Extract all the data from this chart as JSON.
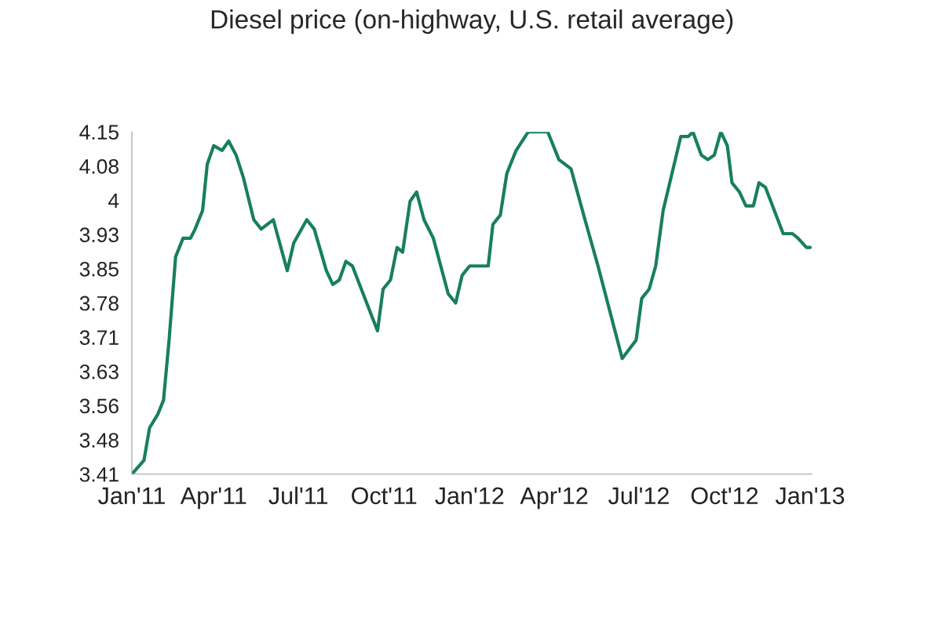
{
  "chart_data": {
    "type": "line",
    "title": "Diesel price (on-highway, U.S. retail average)",
    "x": [
      "2011-01-03",
      "2011-01-16",
      "2011-01-22",
      "2011-01-31",
      "2011-02-06",
      "2011-02-12",
      "2011-02-19",
      "2011-02-27",
      "2011-03-07",
      "2011-03-12",
      "2011-03-20",
      "2011-03-25",
      "2011-04-01",
      "2011-04-10",
      "2011-04-17",
      "2011-04-25",
      "2011-05-03",
      "2011-05-14",
      "2011-05-22",
      "2011-06-04",
      "2011-06-19",
      "2011-06-26",
      "2011-07-10",
      "2011-07-18",
      "2011-07-31",
      "2011-08-07",
      "2011-08-14",
      "2011-08-21",
      "2011-08-28",
      "2011-09-24",
      "2011-09-30",
      "2011-10-08",
      "2011-10-15",
      "2011-10-21",
      "2011-10-29",
      "2011-11-05",
      "2011-11-13",
      "2011-11-23",
      "2011-12-09",
      "2011-12-17",
      "2011-12-24",
      "2012-01-01",
      "2012-01-14",
      "2012-01-21",
      "2012-01-26",
      "2012-02-03",
      "2012-02-10",
      "2012-02-20",
      "2012-03-04",
      "2012-03-16",
      "2012-03-25",
      "2012-04-06",
      "2012-04-19",
      "2012-05-04",
      "2012-05-18",
      "2012-06-13",
      "2012-06-28",
      "2012-07-04",
      "2012-07-12",
      "2012-07-19",
      "2012-07-27",
      "2012-08-15",
      "2012-08-23",
      "2012-08-28",
      "2012-09-06",
      "2012-09-13",
      "2012-09-20",
      "2012-09-27",
      "2012-10-04",
      "2012-10-09",
      "2012-10-17",
      "2012-10-24",
      "2012-11-01",
      "2012-11-07",
      "2012-11-14",
      "2012-12-03",
      "2012-12-13",
      "2012-12-19",
      "2012-12-28",
      "2013-01-01"
    ],
    "series": [
      {
        "color": "#17805a",
        "values": [
          3.41,
          3.44,
          3.51,
          3.54,
          3.57,
          3.7,
          3.88,
          3.92,
          3.92,
          3.94,
          3.98,
          4.08,
          4.12,
          4.11,
          4.13,
          4.1,
          4.05,
          3.96,
          3.94,
          3.96,
          3.85,
          3.91,
          3.96,
          3.94,
          3.85,
          3.82,
          3.83,
          3.87,
          3.86,
          3.72,
          3.81,
          3.83,
          3.9,
          3.89,
          4.0,
          4.02,
          3.96,
          3.92,
          3.8,
          3.78,
          3.84,
          3.86,
          3.86,
          3.86,
          3.95,
          3.97,
          4.06,
          4.11,
          4.15,
          4.15,
          4.15,
          4.09,
          4.07,
          3.96,
          3.86,
          3.66,
          3.7,
          3.79,
          3.81,
          3.86,
          3.98,
          4.14,
          4.14,
          4.15,
          4.1,
          4.09,
          4.1,
          4.15,
          4.12,
          4.04,
          4.02,
          3.99,
          3.99,
          4.04,
          4.03,
          3.93,
          3.93,
          3.92,
          3.9,
          3.9
        ]
      }
    ],
    "xlim": [
      "2011-01-03",
      "2013-01-03"
    ],
    "xticks": [
      {
        "value": "2011-01-03",
        "label": "Jan'11"
      },
      {
        "value": "2011-04-01",
        "label": "Apr'11"
      },
      {
        "value": "2011-07-01",
        "label": "Jul'11"
      },
      {
        "value": "2011-10-01",
        "label": "Oct'11"
      },
      {
        "value": "2012-01-01",
        "label": "Jan'12"
      },
      {
        "value": "2012-04-01",
        "label": "Apr'12"
      },
      {
        "value": "2012-07-01",
        "label": "Jul'12"
      },
      {
        "value": "2012-10-01",
        "label": "Oct'12"
      },
      {
        "value": "2013-01-01",
        "label": "Jan'13"
      }
    ],
    "ylim": [
      3.41,
      4.15
    ],
    "yticks": [
      3.41,
      {
        "value": 3.484,
        "label": "3.48"
      },
      {
        "value": 3.558,
        "label": "3.56"
      },
      {
        "value": 3.632,
        "label": "3.63"
      },
      {
        "value": 3.706,
        "label": "3.71"
      },
      {
        "value": 3.78,
        "label": "3.78"
      },
      {
        "value": 3.854,
        "label": "3.85"
      },
      {
        "value": 3.928,
        "label": "3.93"
      },
      {
        "value": 4.002,
        "label": "4"
      },
      {
        "value": 4.076,
        "label": "4.08"
      },
      4.15
    ],
    "grid": false,
    "marker": "none",
    "line_style": "solid"
  }
}
